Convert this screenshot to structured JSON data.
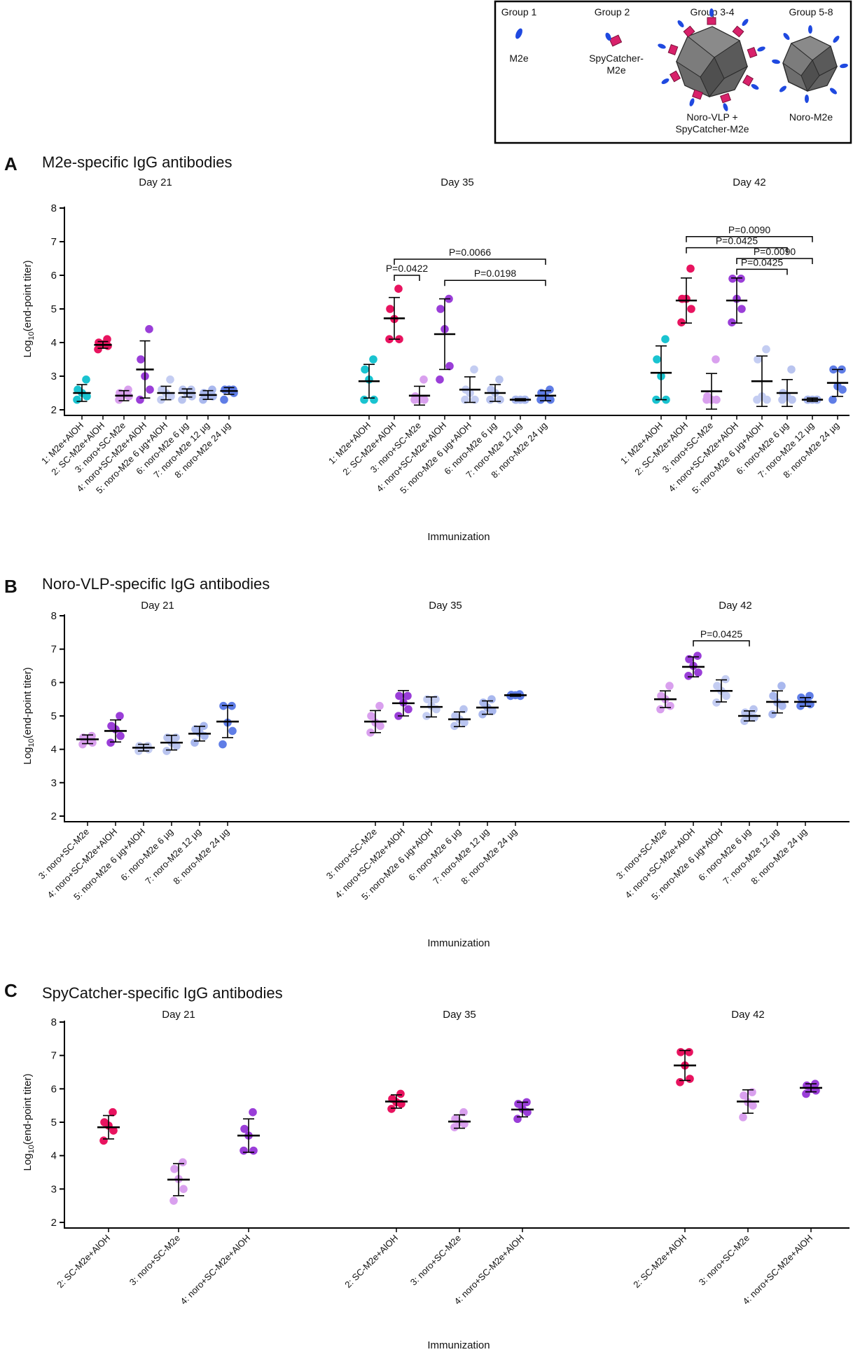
{
  "legend": {
    "groups": [
      {
        "group": "Group 1",
        "label": "M2e"
      },
      {
        "group": "Group 2",
        "label": "SpyCatcher-\nM2e"
      },
      {
        "group": "Group 3-4",
        "label": "Noro-VLP +\nSpyCatcher-M2e"
      },
      {
        "group": "Group 5-8",
        "label": "Noro-M2e"
      }
    ]
  },
  "colors": {
    "g1": "#19c3d0",
    "g2": "#e8135f",
    "g3": "#d9a0ee",
    "g4": "#9a3ed8",
    "g5": "#c4cdf2",
    "g6": "#b9c4ef",
    "g7": "#a9b8ee",
    "g8": "#5f7de6"
  },
  "chart_data": [
    {
      "panel": "A",
      "type": "scatter",
      "title": "M2e-specific IgG antibodies",
      "ylabel": "Log10(end-point titer)",
      "xlabel": "Immunization",
      "ylim": [
        2,
        8
      ],
      "yticks": [
        2,
        3,
        4,
        5,
        6,
        7,
        8
      ],
      "days": [
        {
          "day": "Day 21",
          "groups": [
            {
              "label": "1: M2e+AlOH",
              "color": "g1",
              "mean": 2.5,
              "sd": 0.25,
              "points": [
                2.3,
                2.4,
                2.5,
                2.6,
                2.9
              ]
            },
            {
              "label": "2: SC-M2e+AlOH",
              "color": "g2",
              "mean": 3.93,
              "sd": 0.1,
              "points": [
                3.8,
                3.9,
                3.95,
                4.0,
                4.1
              ]
            },
            {
              "label": "3: noro+SC-M2e",
              "color": "g3",
              "mean": 2.42,
              "sd": 0.15,
              "points": [
                2.3,
                2.4,
                2.45,
                2.5,
                2.6
              ]
            },
            {
              "label": "4: noro+SC-M2e+AlOH",
              "color": "g4",
              "mean": 3.2,
              "sd": 0.85,
              "points": [
                2.3,
                2.6,
                3.0,
                3.5,
                4.4
              ]
            },
            {
              "label": "5: noro-M2e 6 µg+AlOH",
              "color": "g5",
              "mean": 2.5,
              "sd": 0.2,
              "points": [
                2.3,
                2.4,
                2.5,
                2.6,
                2.9
              ]
            },
            {
              "label": "6: noro-M2e 6 µg",
              "color": "g6",
              "mean": 2.5,
              "sd": 0.12,
              "points": [
                2.3,
                2.4,
                2.5,
                2.6,
                2.6
              ]
            },
            {
              "label": "7: noro-M2e 12 µg",
              "color": "g7",
              "mean": 2.44,
              "sd": 0.13,
              "points": [
                2.3,
                2.4,
                2.45,
                2.5,
                2.6
              ]
            },
            {
              "label": "8: noro-M2e 24 µg",
              "color": "g8",
              "mean": 2.56,
              "sd": 0.1,
              "points": [
                2.3,
                2.5,
                2.6,
                2.6,
                2.6
              ]
            }
          ],
          "brackets": []
        },
        {
          "day": "Day 35",
          "groups": [
            {
              "label": "1: M2e+AlOH",
              "color": "g1",
              "mean": 2.85,
              "sd": 0.5,
              "points": [
                2.3,
                2.3,
                2.9,
                3.2,
                3.5
              ]
            },
            {
              "label": "2: SC-M2e+AlOH",
              "color": "g2",
              "mean": 4.72,
              "sd": 0.62,
              "points": [
                4.1,
                4.1,
                4.7,
                5.0,
                5.6
              ]
            },
            {
              "label": "3: noro+SC-M2e",
              "color": "g3",
              "mean": 2.42,
              "sd": 0.28,
              "points": [
                2.3,
                2.3,
                2.3,
                2.4,
                2.9
              ]
            },
            {
              "label": "4: noro+SC-M2e+AlOH",
              "color": "g4",
              "mean": 4.25,
              "sd": 1.05,
              "points": [
                2.9,
                3.3,
                4.4,
                5.0,
                5.3
              ]
            },
            {
              "label": "5: noro-M2e 6 µg+AlOH",
              "color": "g5",
              "mean": 2.6,
              "sd": 0.38,
              "points": [
                2.3,
                2.3,
                2.5,
                2.6,
                3.2
              ]
            },
            {
              "label": "6: noro-M2e 6 µg",
              "color": "g6",
              "mean": 2.5,
              "sd": 0.25,
              "points": [
                2.3,
                2.3,
                2.5,
                2.6,
                2.9
              ]
            },
            {
              "label": "7: noro-M2e 12 µg",
              "color": "g7",
              "mean": 2.3,
              "sd": 0.03,
              "points": [
                2.3,
                2.3,
                2.3,
                2.3,
                2.3
              ]
            },
            {
              "label": "8: noro-M2e 24 µg",
              "color": "g8",
              "mean": 2.42,
              "sd": 0.15,
              "points": [
                2.3,
                2.3,
                2.4,
                2.5,
                2.6
              ]
            }
          ],
          "brackets": [
            {
              "from": 2,
              "to": 8,
              "y": 6.48,
              "label": "P=0.0066"
            },
            {
              "from": 2,
              "to": 3,
              "y": 6.0,
              "label": "P=0.0422"
            },
            {
              "from": 4,
              "to": 8,
              "y": 5.85,
              "label": "P=0.0198"
            }
          ]
        },
        {
          "day": "Day 42",
          "groups": [
            {
              "label": "1: M2e+AlOH",
              "color": "g1",
              "mean": 3.1,
              "sd": 0.8,
              "points": [
                2.3,
                2.3,
                3.0,
                3.5,
                4.1
              ]
            },
            {
              "label": "2: SC-M2e+AlOH",
              "color": "g2",
              "mean": 5.25,
              "sd": 0.67,
              "points": [
                4.6,
                5.0,
                5.3,
                5.3,
                6.2
              ]
            },
            {
              "label": "3: noro+SC-M2e",
              "color": "g3",
              "mean": 2.55,
              "sd": 0.53,
              "points": [
                2.3,
                2.3,
                2.3,
                2.4,
                3.5
              ]
            },
            {
              "label": "4: noro+SC-M2e+AlOH",
              "color": "g4",
              "mean": 5.25,
              "sd": 0.67,
              "points": [
                4.6,
                5.0,
                5.3,
                5.9,
                5.9
              ]
            },
            {
              "label": "5: noro-M2e 6 µg+AlOH",
              "color": "g5",
              "mean": 2.85,
              "sd": 0.75,
              "points": [
                2.3,
                2.3,
                2.4,
                3.5,
                3.8
              ]
            },
            {
              "label": "6: noro-M2e 6 µg",
              "color": "g6",
              "mean": 2.5,
              "sd": 0.4,
              "points": [
                2.3,
                2.3,
                2.4,
                2.5,
                3.2
              ]
            },
            {
              "label": "7: noro-M2e 12 µg",
              "color": "g7",
              "mean": 2.3,
              "sd": 0.05,
              "points": [
                2.3,
                2.3,
                2.3,
                2.3,
                2.3
              ]
            },
            {
              "label": "8: noro-M2e 24 µg",
              "color": "g8",
              "mean": 2.8,
              "sd": 0.4,
              "points": [
                2.3,
                2.6,
                2.7,
                3.2,
                3.2
              ]
            }
          ],
          "brackets": [
            {
              "from": 2,
              "to": 7,
              "y": 7.15,
              "label": "P=0.0090"
            },
            {
              "from": 2,
              "to": 6,
              "y": 6.82,
              "label": "P=0.0425"
            },
            {
              "from": 4,
              "to": 7,
              "y": 6.5,
              "label": "P=0.0090"
            },
            {
              "from": 4,
              "to": 6,
              "y": 6.18,
              "label": "P=0.0425"
            }
          ]
        }
      ]
    },
    {
      "panel": "B",
      "type": "scatter",
      "title": "Noro-VLP-specific IgG antibodies",
      "ylabel": "Log10(end-point titer)",
      "xlabel": "Immunization",
      "ylim": [
        2,
        8
      ],
      "yticks": [
        2,
        3,
        4,
        5,
        6,
        7,
        8
      ],
      "days": [
        {
          "day": "Day 21",
          "groups": [
            {
              "label": "3: noro+SC-M2e",
              "color": "g3",
              "mean": 4.3,
              "sd": 0.13,
              "points": [
                4.15,
                4.2,
                4.3,
                4.35,
                4.4
              ]
            },
            {
              "label": "4: noro+SC-M2e+AlOH",
              "color": "g4",
              "mean": 4.55,
              "sd": 0.33,
              "points": [
                4.2,
                4.4,
                4.6,
                4.7,
                5.0
              ]
            },
            {
              "label": "5: noro-M2e 6 µg+AlOH",
              "color": "g5",
              "mean": 4.05,
              "sd": 0.1,
              "points": [
                3.95,
                4.0,
                4.05,
                4.1,
                4.1
              ]
            },
            {
              "label": "6: noro-M2e 6 µg",
              "color": "g6",
              "mean": 4.2,
              "sd": 0.22,
              "points": [
                3.95,
                4.1,
                4.2,
                4.35,
                4.35
              ]
            },
            {
              "label": "7: noro-M2e 12 µg",
              "color": "g7",
              "mean": 4.47,
              "sd": 0.22,
              "points": [
                4.2,
                4.4,
                4.5,
                4.6,
                4.7
              ]
            },
            {
              "label": "8: noro-M2e 24 µg",
              "color": "g8",
              "mean": 4.83,
              "sd": 0.48,
              "points": [
                4.15,
                4.55,
                4.8,
                5.3,
                5.3
              ]
            }
          ],
          "brackets": []
        },
        {
          "day": "Day 35",
          "groups": [
            {
              "label": "3: noro+SC-M2e",
              "color": "g3",
              "mean": 4.83,
              "sd": 0.33,
              "points": [
                4.5,
                4.7,
                4.8,
                5.0,
                5.3
              ]
            },
            {
              "label": "4: noro+SC-M2e+AlOH",
              "color": "g4",
              "mean": 5.38,
              "sd": 0.38,
              "points": [
                5.0,
                5.2,
                5.4,
                5.6,
                5.6
              ]
            },
            {
              "label": "5: noro-M2e 6 µg+AlOH",
              "color": "g5",
              "mean": 5.27,
              "sd": 0.3,
              "points": [
                5.0,
                5.2,
                5.3,
                5.5,
                5.5
              ]
            },
            {
              "label": "6: noro-M2e 6 µg",
              "color": "g6",
              "mean": 4.9,
              "sd": 0.22,
              "points": [
                4.7,
                4.8,
                4.9,
                5.0,
                5.2
              ]
            },
            {
              "label": "7: noro-M2e 12 µg",
              "color": "g7",
              "mean": 5.25,
              "sd": 0.2,
              "points": [
                5.05,
                5.15,
                5.25,
                5.4,
                5.5
              ]
            },
            {
              "label": "8: noro-M2e 24 µg",
              "color": "g8",
              "mean": 5.62,
              "sd": 0.03,
              "points": [
                5.6,
                5.6,
                5.62,
                5.63,
                5.65
              ]
            }
          ],
          "brackets": []
        },
        {
          "day": "Day 42",
          "groups": [
            {
              "label": "3: noro+SC-M2e",
              "color": "g3",
              "mean": 5.5,
              "sd": 0.25,
              "points": [
                5.2,
                5.3,
                5.5,
                5.6,
                5.9
              ]
            },
            {
              "label": "4: noro+SC-M2e+AlOH",
              "color": "g4",
              "mean": 6.47,
              "sd": 0.3,
              "points": [
                6.2,
                6.3,
                6.5,
                6.7,
                6.8
              ]
            },
            {
              "label": "5: noro-M2e 6 µg+AlOH",
              "color": "g5",
              "mean": 5.75,
              "sd": 0.33,
              "points": [
                5.4,
                5.6,
                5.75,
                5.9,
                6.1
              ]
            },
            {
              "label": "6: noro-M2e 6 µg",
              "color": "g6",
              "mean": 5.0,
              "sd": 0.15,
              "points": [
                4.85,
                4.95,
                5.0,
                5.1,
                5.2
              ]
            },
            {
              "label": "7: noro-M2e 12 µg",
              "color": "g7",
              "mean": 5.42,
              "sd": 0.33,
              "points": [
                5.05,
                5.3,
                5.4,
                5.6,
                5.9
              ]
            },
            {
              "label": "8: noro-M2e 24 µg",
              "color": "g8",
              "mean": 5.42,
              "sd": 0.13,
              "points": [
                5.3,
                5.35,
                5.45,
                5.55,
                5.6
              ]
            }
          ],
          "brackets": [
            {
              "from": 4,
              "to": 6,
              "y": 7.25,
              "label": "P=0.0425"
            }
          ]
        }
      ]
    },
    {
      "panel": "C",
      "type": "scatter",
      "title": "SpyCatcher-specific IgG antibodies",
      "ylabel": "Log10(end-point titer)",
      "xlabel": "Immunization",
      "ylim": [
        2,
        8
      ],
      "yticks": [
        2,
        3,
        4,
        5,
        6,
        7,
        8
      ],
      "days": [
        {
          "day": "Day 21",
          "groups": [
            {
              "label": "2: SC-M2e+AlOH",
              "color": "g2",
              "mean": 4.85,
              "sd": 0.35,
              "points": [
                4.45,
                4.75,
                4.9,
                5.0,
                5.3
              ]
            },
            {
              "label": "3: noro+SC-M2e",
              "color": "g3",
              "mean": 3.28,
              "sd": 0.48,
              "points": [
                2.65,
                3.0,
                3.3,
                3.6,
                3.8
              ]
            },
            {
              "label": "4: noro+SC-M2e+AlOH",
              "color": "g4",
              "mean": 4.6,
              "sd": 0.5,
              "points": [
                4.15,
                4.15,
                4.6,
                4.8,
                5.3
              ]
            }
          ],
          "brackets": []
        },
        {
          "day": "Day 35",
          "groups": [
            {
              "label": "2: SC-M2e+AlOH",
              "color": "g2",
              "mean": 5.62,
              "sd": 0.2,
              "points": [
                5.4,
                5.55,
                5.6,
                5.7,
                5.85
              ]
            },
            {
              "label": "3: noro+SC-M2e",
              "color": "g3",
              "mean": 5.02,
              "sd": 0.2,
              "points": [
                4.85,
                4.95,
                5.0,
                5.1,
                5.3
              ]
            },
            {
              "label": "4: noro+SC-M2e+AlOH",
              "color": "g4",
              "mean": 5.38,
              "sd": 0.22,
              "points": [
                5.1,
                5.3,
                5.4,
                5.55,
                5.6
              ]
            }
          ],
          "brackets": []
        },
        {
          "day": "Day 42",
          "groups": [
            {
              "label": "2: SC-M2e+AlOH",
              "color": "g2",
              "mean": 6.7,
              "sd": 0.45,
              "points": [
                6.2,
                6.3,
                6.7,
                7.1,
                7.1
              ]
            },
            {
              "label": "3: noro+SC-M2e",
              "color": "g3",
              "mean": 5.62,
              "sd": 0.35,
              "points": [
                5.15,
                5.5,
                5.6,
                5.8,
                5.9
              ]
            },
            {
              "label": "4: noro+SC-M2e+AlOH",
              "color": "g4",
              "mean": 6.03,
              "sd": 0.12,
              "points": [
                5.85,
                5.95,
                6.0,
                6.1,
                6.15
              ]
            }
          ],
          "brackets": []
        }
      ]
    }
  ]
}
